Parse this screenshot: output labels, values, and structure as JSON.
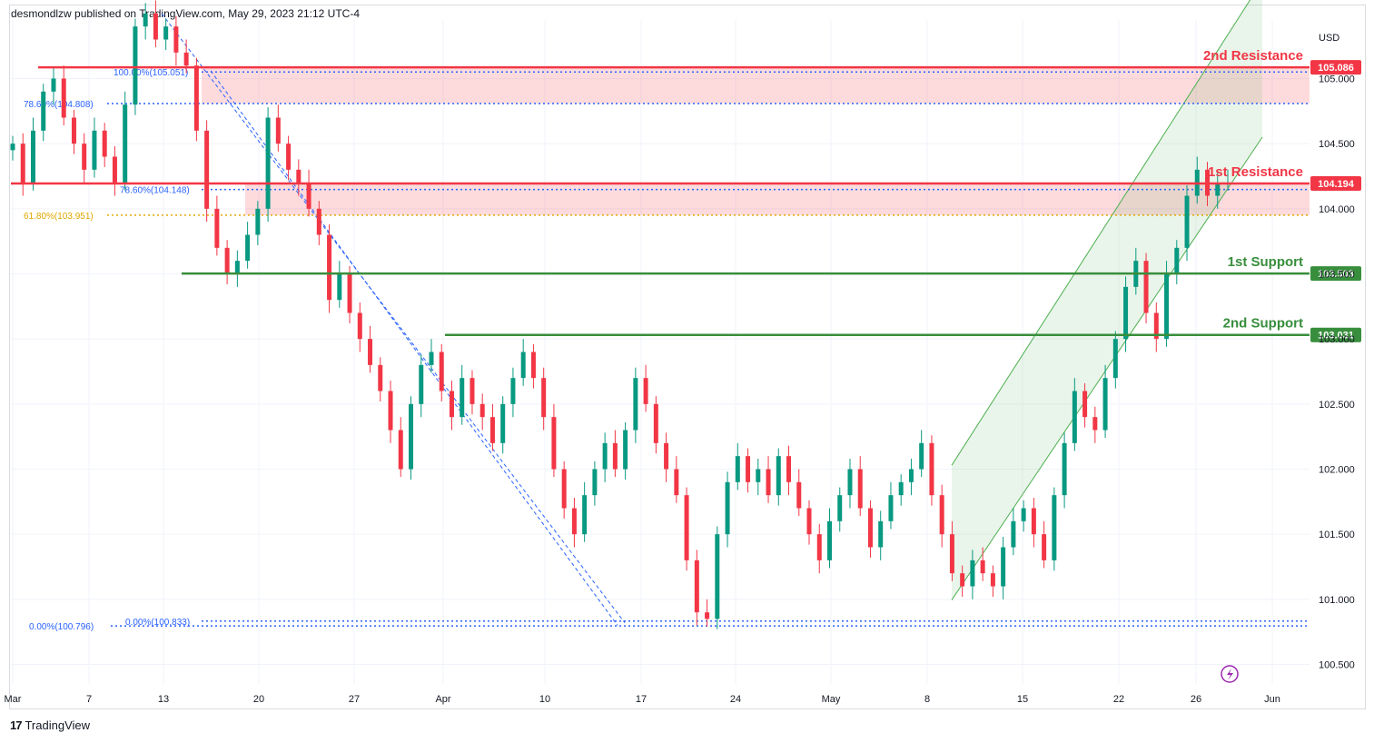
{
  "header": {
    "text": "desmondlzw published on TradingView.com, May 29, 2023 21:12 UTC-4"
  },
  "footer": {
    "logo_mark": "17",
    "brand": "TradingView"
  },
  "chart_data": {
    "type": "candlestick",
    "currency_label": "USD",
    "y_ticks": [
      "105.000",
      "104.500",
      "104.000",
      "103.500",
      "103.000",
      "102.500",
      "102.000",
      "101.500",
      "101.000",
      "100.500"
    ],
    "x_ticks": [
      "Mar",
      "7",
      "13",
      "20",
      "27",
      "Apr",
      "10",
      "17",
      "24",
      "May",
      "8",
      "15",
      "22",
      "26",
      "Jun"
    ],
    "ylim": [
      100.35,
      105.45
    ],
    "levels": [
      {
        "label": "2nd Resistance",
        "value": 105.086,
        "value_label": "105.086",
        "color": "#f23645"
      },
      {
        "label": "1st Resistance",
        "value": 104.194,
        "value_label": "104.194",
        "color": "#f23645"
      },
      {
        "label": "1st Support",
        "value": 103.503,
        "value_label": "103.503",
        "color": "#388e3c"
      },
      {
        "label": "2nd Support",
        "value": 103.031,
        "value_label": "103.031",
        "color": "#388e3c"
      }
    ],
    "zones": [
      {
        "from": 104.808,
        "to": 105.086,
        "color": "#f23645"
      },
      {
        "from": 103.951,
        "to": 104.194,
        "color": "#f23645"
      }
    ],
    "fib_labels": [
      {
        "text": "100.00%(105.051)",
        "value": 105.051,
        "color": "#2962ff"
      },
      {
        "text": "78.60%(104.808)",
        "value": 104.808,
        "color": "#2962ff"
      },
      {
        "text": "78.60%(104.148)",
        "value": 104.148,
        "color": "#2962ff"
      },
      {
        "text": "61.80%(103.951)",
        "value": 103.951,
        "color": "#e0a800"
      },
      {
        "text": "0.00%(100.833)",
        "value": 100.833,
        "color": "#2962ff"
      },
      {
        "text": "0.00%(100.796)",
        "value": 100.796,
        "color": "#2962ff"
      }
    ],
    "closes": [
      104.5,
      104.2,
      104.6,
      104.9,
      105.0,
      104.7,
      104.5,
      104.3,
      104.6,
      104.4,
      104.2,
      104.8,
      105.4,
      105.5,
      105.3,
      105.4,
      105.2,
      105.1,
      104.6,
      104.0,
      103.7,
      103.5,
      103.6,
      103.8,
      104.0,
      104.7,
      104.5,
      104.3,
      104.2,
      104.0,
      103.8,
      103.3,
      103.5,
      103.2,
      103.0,
      102.8,
      102.6,
      102.3,
      102.0,
      102.5,
      102.8,
      102.9,
      102.6,
      102.4,
      102.7,
      102.5,
      102.4,
      102.2,
      102.5,
      102.7,
      102.9,
      102.7,
      102.4,
      102.0,
      101.7,
      101.5,
      101.8,
      102.0,
      102.2,
      102.0,
      102.3,
      102.7,
      102.5,
      102.2,
      102.0,
      101.8,
      101.3,
      100.9,
      100.85,
      101.5,
      101.9,
      102.1,
      101.9,
      102.0,
      101.8,
      102.1,
      101.9,
      101.7,
      101.5,
      101.3,
      101.6,
      101.8,
      102.0,
      101.7,
      101.4,
      101.6,
      101.8,
      101.9,
      102.0,
      102.2,
      101.8,
      101.5,
      101.2,
      101.1,
      101.3,
      101.2,
      101.1,
      101.4,
      101.6,
      101.7,
      101.5,
      101.3,
      101.8,
      102.2,
      102.6,
      102.4,
      102.3,
      102.7,
      103.0,
      103.4,
      103.6,
      103.2,
      103.0,
      103.5,
      103.7,
      104.1,
      104.3,
      104.1,
      104.2,
      104.2
    ]
  }
}
